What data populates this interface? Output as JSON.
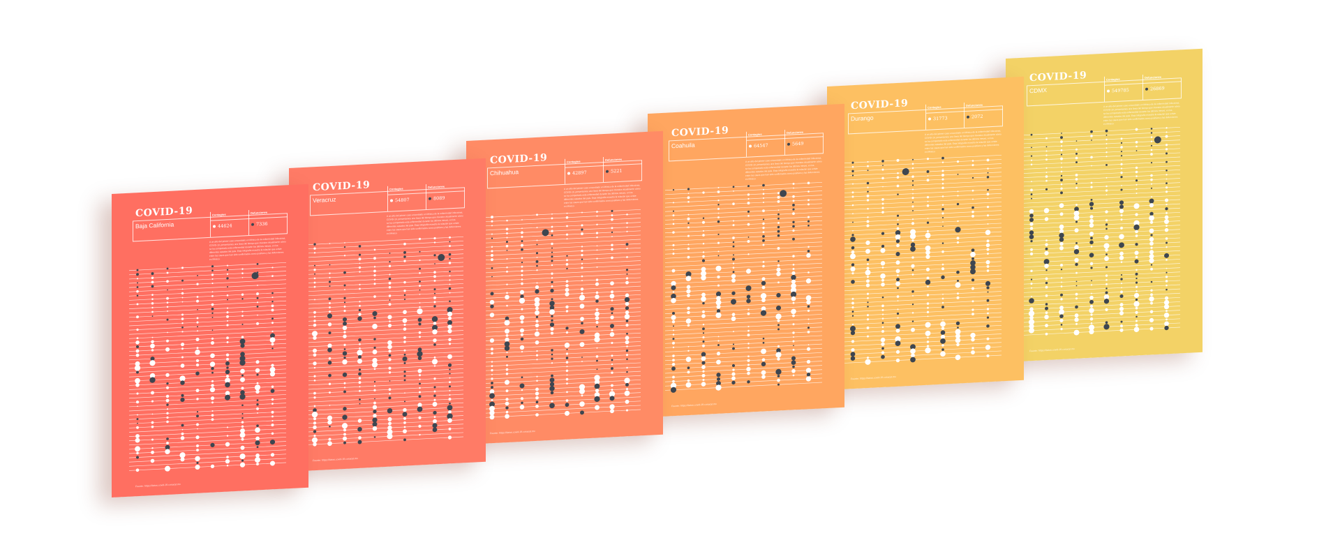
{
  "common": {
    "title": "COVID-19",
    "cases_label": "Contagios",
    "deaths_label": "Defunciones",
    "description": "A un año del primer caso encontrado en México de la enfermedad infecciosa, COVID-19, presentamos una línea del tiempo que muestra visualmente cómo se ha comportado esta enfermedad durante los últimos meses, en los diferentes estados del país. Esta infografía muestra la relación que existe entre los casos que han sido confirmados como positivos y las defunciones en México.",
    "source": "Fuente: https://datos.covid-19.conacyt.mx",
    "dot_colors": {
      "cases": "#ffffff",
      "deaths": "#3e4650"
    }
  },
  "posters": [
    {
      "state": "Baja California",
      "cases": "44624",
      "deaths": "7336",
      "color": "#ff6f61"
    },
    {
      "state": "Veracruz",
      "cases": "54807",
      "deaths": "8089",
      "color": "#ff7b66"
    },
    {
      "state": "Chihuahua",
      "cases": "42897",
      "deaths": "5221",
      "color": "#ff8b65"
    },
    {
      "state": "Coahuila",
      "cases": "64547",
      "deaths": "5649",
      "color": "#ffa660"
    },
    {
      "state": "Durango",
      "cases": "31773",
      "deaths": "2072",
      "color": "#fdc062"
    },
    {
      "state": "CDMX",
      "cases": "549785",
      "deaths": "26869",
      "color": "#f3d266"
    }
  ]
}
